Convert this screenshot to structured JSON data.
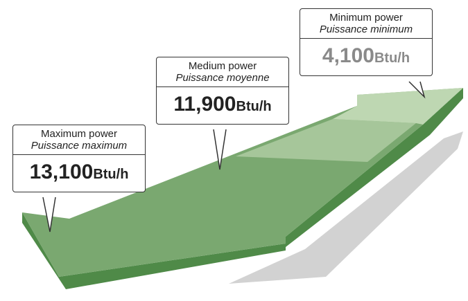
{
  "callouts": [
    {
      "title": "Maximum power",
      "subtitle": "Puissance maximum",
      "value": "13,100",
      "unit": "Btu/h"
    },
    {
      "title": "Medium power",
      "subtitle": "Puissance moyenne",
      "value": "11,900",
      "unit": "Btu/h"
    },
    {
      "title": "Minimum power",
      "subtitle": "Puissance minimum",
      "value": "4,100",
      "unit": "Btu/h"
    }
  ]
}
